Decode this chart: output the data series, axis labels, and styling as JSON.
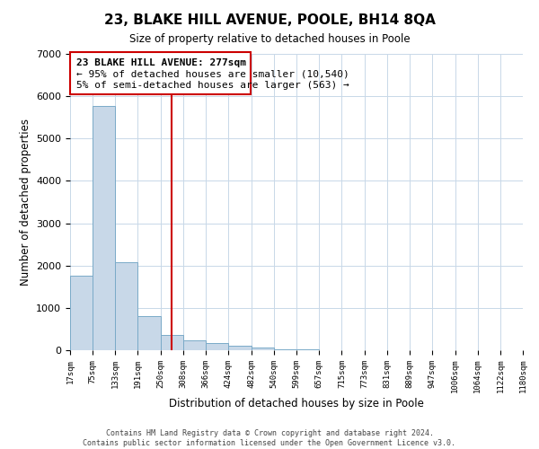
{
  "title": "23, BLAKE HILL AVENUE, POOLE, BH14 8QA",
  "subtitle": "Size of property relative to detached houses in Poole",
  "xlabel": "Distribution of detached houses by size in Poole",
  "ylabel": "Number of detached properties",
  "bar_color": "#c8d8e8",
  "bar_edge_color": "#7aaac8",
  "background_color": "#ffffff",
  "grid_color": "#c8d8e8",
  "annotation_box_color": "#cc0000",
  "vline_color": "#cc0000",
  "annotation_text_line1": "23 BLAKE HILL AVENUE: 277sqm",
  "annotation_text_line2": "← 95% of detached houses are smaller (10,540)",
  "annotation_text_line3": "5% of semi-detached houses are larger (563) →",
  "property_size": 277,
  "bin_edges": [
    17,
    75,
    133,
    191,
    250,
    308,
    366,
    424,
    482,
    540,
    599,
    657,
    715,
    773,
    831,
    889,
    947,
    1006,
    1064,
    1122,
    1180
  ],
  "bin_counts": [
    1760,
    5780,
    2080,
    800,
    360,
    230,
    170,
    100,
    60,
    30,
    30,
    5,
    0,
    0,
    0,
    0,
    0,
    0,
    0,
    0
  ],
  "ylim": [
    0,
    7000
  ],
  "footer_line1": "Contains HM Land Registry data © Crown copyright and database right 2024.",
  "footer_line2": "Contains public sector information licensed under the Open Government Licence v3.0."
}
